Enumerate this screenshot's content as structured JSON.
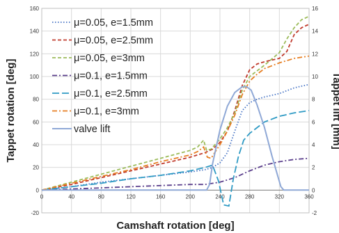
{
  "chart_data": {
    "type": "line",
    "xlabel": "Camshaft rotation [deg]",
    "ylabel": "Tappet rotation [deg]",
    "y2label": "Tappet lift [mm]",
    "xlim": [
      0,
      360
    ],
    "ylim": [
      -20,
      160
    ],
    "y2lim": [
      -2,
      16
    ],
    "xticks": [
      0,
      40,
      80,
      120,
      160,
      200,
      240,
      280,
      320,
      360
    ],
    "yticks": [
      -20,
      0,
      20,
      40,
      60,
      80,
      100,
      120,
      140,
      160
    ],
    "y2ticks": [
      -2,
      0,
      2,
      4,
      6,
      8,
      10,
      12,
      14,
      16
    ],
    "grid": true,
    "legend_position": "top-left",
    "series": [
      {
        "name": "μ=0.05, e=1.5mm",
        "color": "#4472C4",
        "dash": "dotted",
        "axis": "left",
        "x": [
          0,
          40,
          80,
          120,
          160,
          200,
          220,
          230,
          240,
          250,
          260,
          270,
          280,
          290,
          300,
          320,
          340,
          360
        ],
        "y": [
          0,
          3,
          7,
          10,
          13,
          16,
          18,
          20,
          24,
          33,
          52,
          70,
          77,
          80,
          82,
          85,
          90,
          93
        ]
      },
      {
        "name": "μ=0.05, e=2.5mm",
        "color": "#C0392B",
        "dash": "dashed",
        "axis": "left",
        "x": [
          0,
          40,
          80,
          120,
          160,
          200,
          220,
          230,
          240,
          250,
          260,
          270,
          280,
          290,
          300,
          320,
          330,
          340,
          350,
          360
        ],
        "y": [
          0,
          5,
          11,
          17,
          23,
          29,
          33,
          36,
          42,
          52,
          70,
          92,
          106,
          111,
          113,
          116,
          122,
          137,
          143,
          146
        ]
      },
      {
        "name": "μ=0.05, e=3mm",
        "color": "#9BBB59",
        "dash": "dashed",
        "axis": "left",
        "x": [
          0,
          40,
          80,
          120,
          160,
          200,
          210,
          218,
          222,
          228,
          240,
          250,
          260,
          270,
          280,
          290,
          300,
          320,
          330,
          340,
          350,
          360
        ],
        "y": [
          0,
          7,
          14,
          21,
          28,
          35,
          38,
          44,
          35,
          36,
          45,
          55,
          68,
          88,
          100,
          105,
          110,
          121,
          133,
          143,
          150,
          153
        ]
      },
      {
        "name": "μ=0.1, e=1.5mm",
        "color": "#5B3F8C",
        "dash": "dashdot",
        "axis": "left",
        "x": [
          0,
          40,
          80,
          120,
          160,
          200,
          220,
          240,
          260,
          280,
          300,
          320,
          340,
          360
        ],
        "y": [
          0,
          1,
          2,
          3,
          4,
          5,
          5,
          7,
          11,
          17,
          22,
          25,
          27,
          28
        ]
      },
      {
        "name": "μ=0.1, e=2.5mm",
        "color": "#2E9AC4",
        "dash": "longdash",
        "axis": "left",
        "x": [
          0,
          40,
          80,
          120,
          160,
          200,
          220,
          230,
          238,
          245,
          252,
          258,
          265,
          272,
          280,
          290,
          300,
          320,
          340,
          360
        ],
        "y": [
          0,
          3,
          6,
          10,
          13,
          17,
          20,
          22,
          8,
          -13,
          -14,
          10,
          30,
          44,
          50,
          55,
          60,
          65,
          68,
          70
        ]
      },
      {
        "name": "μ=0.1, e=3mm",
        "color": "#E67E22",
        "dash": "dashdot",
        "axis": "left",
        "x": [
          0,
          40,
          80,
          120,
          160,
          200,
          210,
          218,
          223,
          228,
          240,
          250,
          260,
          270,
          280,
          290,
          300,
          320,
          340,
          360
        ],
        "y": [
          0,
          6,
          12,
          18,
          25,
          31,
          34,
          38,
          29,
          28,
          40,
          52,
          66,
          84,
          96,
          102,
          107,
          112,
          116,
          118
        ]
      },
      {
        "name": "valve lift",
        "color": "#8FA8D6",
        "dash": "solid",
        "axis": "right",
        "x": [
          0,
          222,
          226,
          230,
          240,
          250,
          260,
          270,
          276,
          282,
          290,
          300,
          310,
          318,
          322,
          326,
          360
        ],
        "y": [
          0,
          0,
          0.5,
          2.3,
          5.3,
          7.4,
          8.6,
          9.1,
          9.1,
          8.8,
          7.5,
          5.5,
          3.0,
          1.2,
          0.3,
          0,
          0
        ]
      }
    ]
  }
}
